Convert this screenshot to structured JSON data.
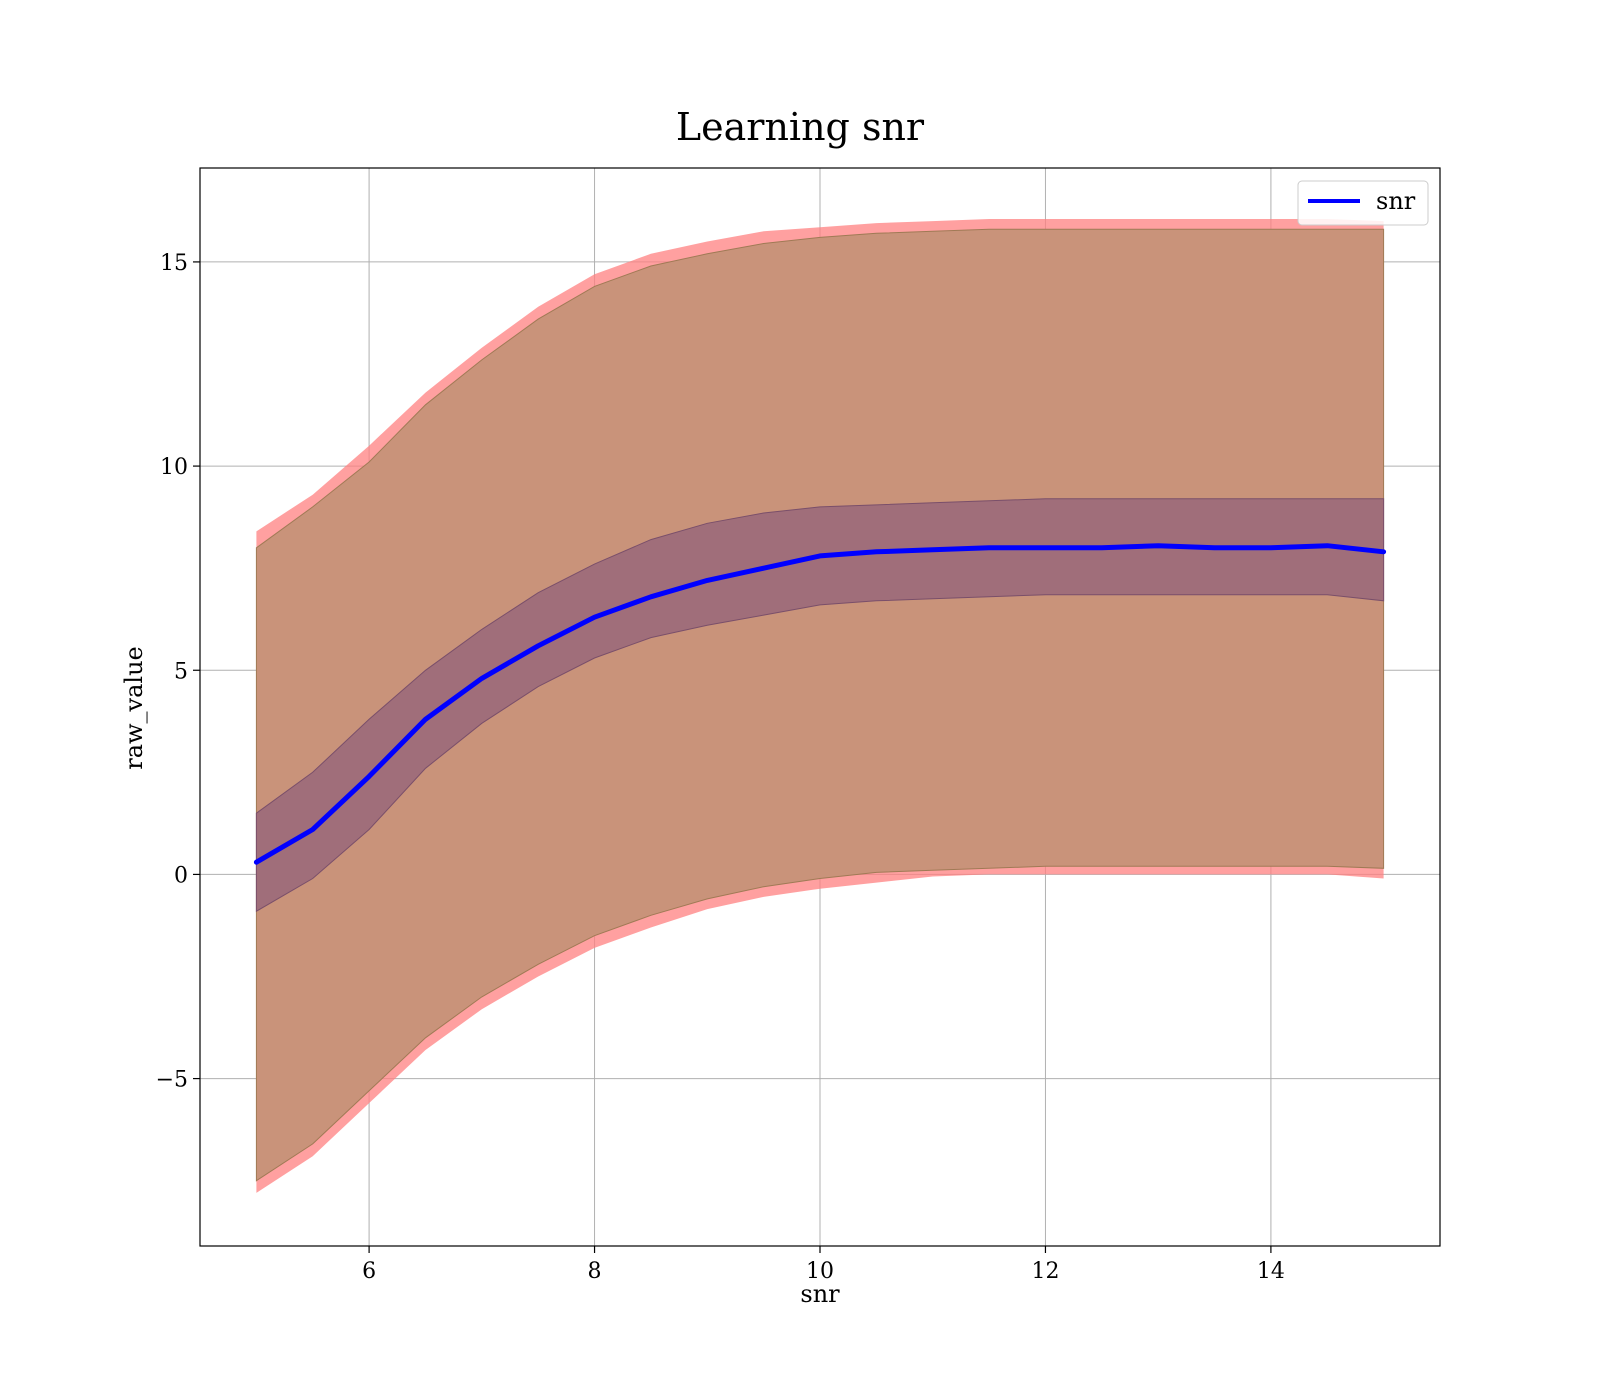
{
  "chart_data": {
    "type": "line",
    "title": "Learning snr",
    "xlabel": "snr",
    "ylabel": "raw_value",
    "xlim": [
      4.5,
      15.5
    ],
    "ylim": [
      -9.1,
      17.3
    ],
    "xticks": [
      6,
      8,
      10,
      12,
      14
    ],
    "yticks": [
      -5,
      0,
      5,
      10,
      15
    ],
    "ytick_labels": [
      "−5",
      "0",
      "5",
      "10",
      "15"
    ],
    "grid": true,
    "legend_position": "top-right",
    "colors": {
      "line": "#0000ff",
      "outer_band_pink": "#ff8080",
      "outer_band_brown": "#c9937a",
      "inner_band": "#a06e7a",
      "grid": "#b0b0b0"
    },
    "x": [
      5.0,
      5.5,
      6.0,
      6.5,
      7.0,
      7.5,
      8.0,
      8.5,
      9.0,
      9.5,
      10.0,
      10.5,
      11.0,
      11.5,
      12.0,
      12.5,
      13.0,
      13.5,
      14.0,
      14.5,
      15.0
    ],
    "series": [
      {
        "name": "snr",
        "values": [
          0.3,
          1.1,
          2.4,
          3.8,
          4.8,
          5.6,
          6.3,
          6.8,
          7.2,
          7.5,
          7.8,
          7.9,
          7.95,
          8.0,
          8.0,
          8.0,
          8.05,
          8.0,
          8.0,
          8.05,
          7.9
        ]
      }
    ],
    "inner_band": {
      "upper": [
        1.5,
        2.5,
        3.8,
        5.0,
        6.0,
        6.9,
        7.6,
        8.2,
        8.6,
        8.85,
        9.0,
        9.05,
        9.1,
        9.15,
        9.2,
        9.2,
        9.2,
        9.2,
        9.2,
        9.2,
        9.2
      ],
      "lower": [
        -0.9,
        -0.1,
        1.1,
        2.6,
        3.7,
        4.6,
        5.3,
        5.8,
        6.1,
        6.35,
        6.6,
        6.7,
        6.75,
        6.8,
        6.85,
        6.85,
        6.85,
        6.85,
        6.85,
        6.85,
        6.7
      ]
    },
    "outer_band_brown": {
      "upper": [
        8.0,
        9.0,
        10.1,
        11.5,
        12.6,
        13.6,
        14.4,
        14.9,
        15.2,
        15.45,
        15.6,
        15.7,
        15.75,
        15.8,
        15.8,
        15.8,
        15.8,
        15.8,
        15.8,
        15.8,
        15.8
      ],
      "lower": [
        -7.5,
        -6.6,
        -5.3,
        -4.0,
        -3.0,
        -2.2,
        -1.5,
        -1.0,
        -0.6,
        -0.3,
        -0.1,
        0.05,
        0.1,
        0.15,
        0.2,
        0.2,
        0.2,
        0.2,
        0.2,
        0.2,
        0.15
      ]
    },
    "outer_band_pink": {
      "upper": [
        8.4,
        9.3,
        10.5,
        11.8,
        12.9,
        13.9,
        14.7,
        15.2,
        15.5,
        15.75,
        15.85,
        15.95,
        16.0,
        16.05,
        16.05,
        16.05,
        16.05,
        16.05,
        16.05,
        16.05,
        16.0
      ],
      "lower": [
        -7.8,
        -6.9,
        -5.6,
        -4.3,
        -3.3,
        -2.5,
        -1.8,
        -1.3,
        -0.85,
        -0.55,
        -0.35,
        -0.2,
        -0.05,
        0.0,
        0.0,
        0.0,
        0.0,
        0.0,
        0.0,
        0.0,
        -0.1
      ]
    }
  }
}
